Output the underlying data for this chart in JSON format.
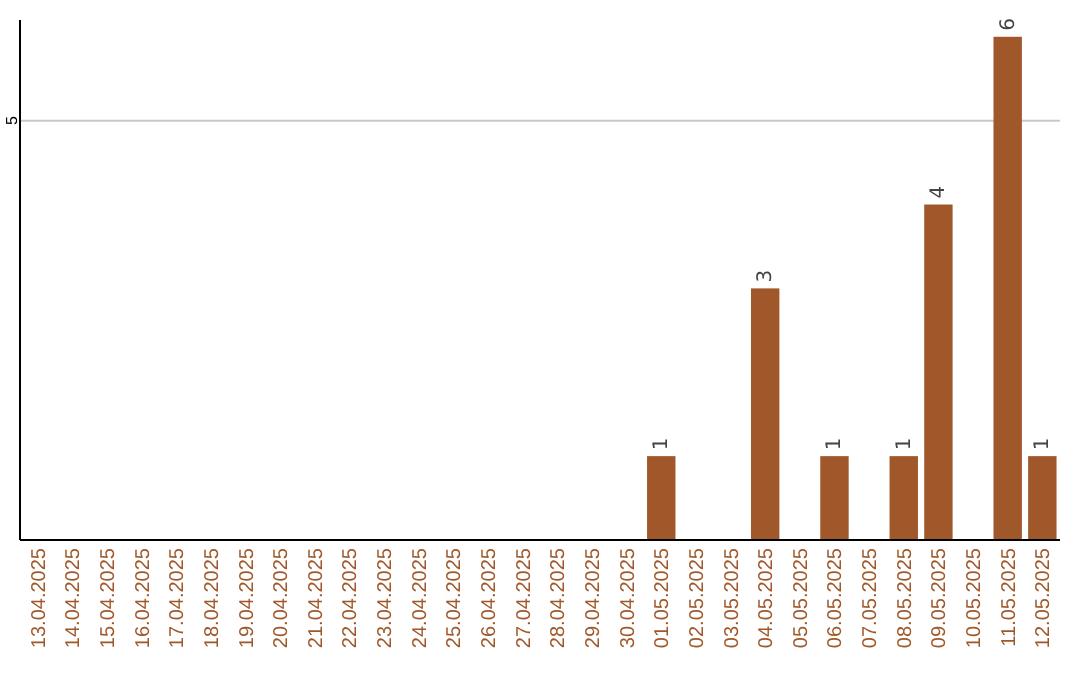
{
  "chart_data": {
    "type": "bar",
    "categories": [
      "13.04.2025",
      "14.04.2025",
      "15.04.2025",
      "16.04.2025",
      "17.04.2025",
      "18.04.2025",
      "19.04.2025",
      "20.04.2025",
      "21.04.2025",
      "22.04.2025",
      "23.04.2025",
      "24.04.2025",
      "25.04.2025",
      "26.04.2025",
      "27.04.2025",
      "28.04.2025",
      "29.04.2025",
      "30.04.2025",
      "01.05.2025",
      "02.05.2025",
      "03.05.2025",
      "04.05.2025",
      "05.05.2025",
      "06.05.2025",
      "07.05.2025",
      "08.05.2025",
      "09.05.2025",
      "10.05.2025",
      "11.05.2025",
      "12.05.2025"
    ],
    "values": [
      null,
      null,
      null,
      null,
      null,
      null,
      null,
      null,
      null,
      null,
      null,
      null,
      null,
      null,
      null,
      null,
      null,
      null,
      1,
      null,
      null,
      3,
      null,
      1,
      null,
      1,
      4,
      null,
      6,
      1
    ],
    "value_labels": [
      null,
      null,
      null,
      null,
      null,
      null,
      null,
      null,
      null,
      null,
      null,
      null,
      null,
      null,
      null,
      null,
      null,
      null,
      "1",
      null,
      null,
      "3",
      null,
      "1",
      null,
      "1",
      "4",
      null,
      "6",
      "1"
    ],
    "color": "#a0582a",
    "ylim": [
      0,
      6.2
    ],
    "yticks": [
      5
    ],
    "grid": "y"
  }
}
